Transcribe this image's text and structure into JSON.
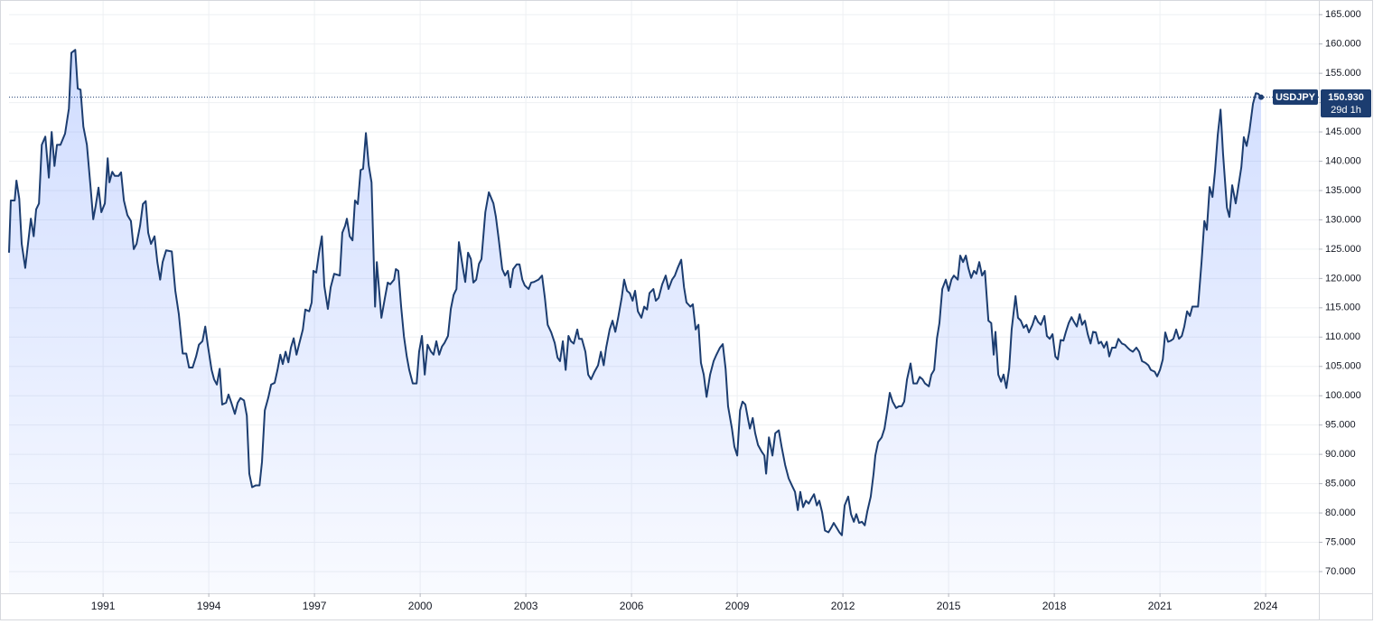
{
  "chart_data": {
    "type": "area",
    "series": [
      {
        "name": "USDJPY",
        "color": "#1c3d70",
        "fill": "#2962ff",
        "x": [
          1988.33,
          1988.38,
          1988.49,
          1988.54,
          1988.62,
          1988.69,
          1988.79,
          1988.95,
          1989.03,
          1989.1,
          1989.18,
          1989.26,
          1989.36,
          1989.46,
          1989.54,
          1989.62,
          1989.69,
          1989.79,
          1989.92,
          1990.03,
          1990.1,
          1990.21,
          1990.28,
          1990.36,
          1990.44,
          1990.54,
          1990.64,
          1990.72,
          1990.79,
          1990.87,
          1990.95,
          1991.05,
          1991.13,
          1991.18,
          1991.26,
          1991.33,
          1991.44,
          1991.51,
          1991.59,
          1991.69,
          1991.79,
          1991.87,
          1991.95,
          1992.05,
          1992.13,
          1992.21,
          1992.28,
          1992.36,
          1992.46,
          1992.54,
          1992.62,
          1992.69,
          1992.79,
          1992.95,
          1993.05,
          1993.15,
          1993.26,
          1993.36,
          1993.44,
          1993.54,
          1993.64,
          1993.72,
          1993.82,
          1993.9,
          1993.97,
          1994.08,
          1994.15,
          1994.23,
          1994.31,
          1994.38,
          1994.49,
          1994.56,
          1994.64,
          1994.74,
          1994.82,
          1994.9,
          1995.0,
          1995.08,
          1995.15,
          1995.23,
          1995.33,
          1995.44,
          1995.51,
          1995.59,
          1995.69,
          1995.77,
          1995.87,
          1995.95,
          1996.03,
          1996.1,
          1996.18,
          1996.26,
          1996.33,
          1996.41,
          1996.49,
          1996.56,
          1996.67,
          1996.74,
          1996.85,
          1996.92,
          1996.97,
          1997.05,
          1997.13,
          1997.21,
          1997.28,
          1997.38,
          1997.46,
          1997.56,
          1997.72,
          1997.79,
          1997.87,
          1997.92,
          1998.0,
          1998.08,
          1998.15,
          1998.23,
          1998.31,
          1998.38,
          1998.46,
          1998.54,
          1998.62,
          1998.72,
          1998.77,
          1998.9,
          1999.0,
          1999.08,
          1999.15,
          1999.26,
          1999.31,
          1999.38,
          1999.46,
          1999.54,
          1999.62,
          1999.69,
          1999.79,
          1999.9,
          1999.97,
          2000.05,
          2000.13,
          2000.21,
          2000.31,
          2000.38,
          2000.46,
          2000.54,
          2000.62,
          2000.69,
          2000.79,
          2000.87,
          2000.95,
          2001.03,
          2001.1,
          2001.21,
          2001.28,
          2001.36,
          2001.44,
          2001.51,
          2001.59,
          2001.67,
          2001.74,
          2001.85,
          2001.95,
          2002.08,
          2002.15,
          2002.23,
          2002.33,
          2002.41,
          2002.49,
          2002.56,
          2002.64,
          2002.74,
          2002.82,
          2002.9,
          2002.97,
          2003.08,
          2003.15,
          2003.23,
          2003.36,
          2003.46,
          2003.54,
          2003.62,
          2003.72,
          2003.82,
          2003.9,
          2003.97,
          2004.05,
          2004.13,
          2004.21,
          2004.28,
          2004.36,
          2004.46,
          2004.51,
          2004.59,
          2004.69,
          2004.77,
          2004.85,
          2004.95,
          2005.05,
          2005.13,
          2005.21,
          2005.28,
          2005.38,
          2005.46,
          2005.54,
          2005.62,
          2005.72,
          2005.79,
          2005.87,
          2005.95,
          2006.03,
          2006.1,
          2006.18,
          2006.28,
          2006.36,
          2006.44,
          2006.51,
          2006.62,
          2006.69,
          2006.77,
          2006.87,
          2006.97,
          2007.05,
          2007.15,
          2007.23,
          2007.31,
          2007.41,
          2007.49,
          2007.56,
          2007.67,
          2007.74,
          2007.82,
          2007.9,
          2007.97,
          2008.05,
          2008.13,
          2008.23,
          2008.33,
          2008.41,
          2008.51,
          2008.59,
          2008.67,
          2008.74,
          2008.85,
          2008.92,
          2009.0,
          2009.08,
          2009.15,
          2009.23,
          2009.31,
          2009.36,
          2009.44,
          2009.51,
          2009.59,
          2009.69,
          2009.77,
          2009.82,
          2009.9,
          2010.0,
          2010.08,
          2010.18,
          2010.26,
          2010.36,
          2010.46,
          2010.56,
          2010.64,
          2010.72,
          2010.79,
          2010.87,
          2010.95,
          2011.03,
          2011.1,
          2011.18,
          2011.26,
          2011.33,
          2011.41,
          2011.49,
          2011.59,
          2011.67,
          2011.74,
          2011.82,
          2011.9,
          2011.97,
          2012.05,
          2012.15,
          2012.23,
          2012.31,
          2012.38,
          2012.46,
          2012.54,
          2012.62,
          2012.69,
          2012.79,
          2012.87,
          2012.92,
          2013.0,
          2013.1,
          2013.18,
          2013.26,
          2013.33,
          2013.41,
          2013.51,
          2013.59,
          2013.67,
          2013.74,
          2013.82,
          2013.92,
          2014.0,
          2014.1,
          2014.18,
          2014.26,
          2014.33,
          2014.44,
          2014.51,
          2014.59,
          2014.67,
          2014.74,
          2014.82,
          2014.92,
          2015.0,
          2015.08,
          2015.15,
          2015.26,
          2015.33,
          2015.41,
          2015.49,
          2015.56,
          2015.64,
          2015.72,
          2015.79,
          2015.87,
          2015.95,
          2016.03,
          2016.13,
          2016.21,
          2016.28,
          2016.33,
          2016.41,
          2016.49,
          2016.56,
          2016.64,
          2016.72,
          2016.79,
          2016.9,
          2016.97,
          2017.05,
          2017.13,
          2017.21,
          2017.28,
          2017.38,
          2017.46,
          2017.54,
          2017.62,
          2017.72,
          2017.79,
          2017.87,
          2017.95,
          2018.03,
          2018.1,
          2018.18,
          2018.26,
          2018.33,
          2018.41,
          2018.49,
          2018.56,
          2018.64,
          2018.72,
          2018.79,
          2018.87,
          2018.95,
          2019.03,
          2019.1,
          2019.18,
          2019.26,
          2019.33,
          2019.41,
          2019.49,
          2019.56,
          2019.64,
          2019.74,
          2019.82,
          2019.92,
          2020.0,
          2020.08,
          2020.15,
          2020.23,
          2020.33,
          2020.41,
          2020.49,
          2020.59,
          2020.67,
          2020.74,
          2020.85,
          2020.92,
          2021.0,
          2021.08,
          2021.15,
          2021.23,
          2021.31,
          2021.38,
          2021.46,
          2021.54,
          2021.62,
          2021.69,
          2021.77,
          2021.85,
          2021.92,
          2022.0,
          2022.08,
          2022.18,
          2022.26,
          2022.33,
          2022.41,
          2022.49,
          2022.56,
          2022.64,
          2022.72,
          2022.79,
          2022.9,
          2022.97,
          2023.05,
          2023.15,
          2023.23,
          2023.31,
          2023.38,
          2023.46,
          2023.54,
          2023.64,
          2023.72,
          2023.79,
          2023.87
        ],
        "values": [
          124.4,
          133.3,
          133.3,
          136.7,
          133.6,
          125.9,
          121.8,
          130.2,
          127.2,
          131.8,
          132.8,
          142.8,
          144.2,
          137.2,
          145.0,
          139.2,
          142.8,
          142.8,
          144.7,
          149.0,
          158.5,
          159.0,
          152.4,
          152.2,
          145.9,
          142.8,
          135.9,
          130.1,
          132.4,
          135.5,
          131.3,
          132.8,
          140.5,
          136.4,
          138.2,
          137.5,
          137.5,
          138.1,
          133.3,
          130.8,
          129.8,
          125.0,
          125.9,
          129.0,
          132.7,
          133.2,
          127.8,
          125.9,
          127.2,
          122.8,
          119.8,
          122.8,
          124.8,
          124.6,
          117.9,
          113.9,
          107.2,
          107.2,
          104.8,
          104.8,
          106.7,
          108.7,
          109.3,
          111.8,
          108.7,
          104.4,
          102.8,
          101.9,
          104.6,
          98.5,
          98.8,
          100.2,
          98.8,
          96.9,
          98.8,
          99.6,
          99.2,
          96.6,
          86.7,
          84.4,
          84.7,
          84.7,
          88.7,
          97.5,
          99.7,
          101.9,
          102.2,
          104.4,
          107.0,
          105.4,
          107.5,
          105.7,
          108.2,
          109.8,
          107.0,
          108.7,
          111.3,
          114.7,
          114.4,
          115.9,
          121.3,
          121.0,
          124.4,
          127.2,
          118.7,
          114.8,
          118.5,
          120.8,
          120.5,
          127.8,
          129.0,
          130.2,
          127.2,
          126.5,
          133.3,
          132.7,
          138.5,
          138.7,
          144.8,
          139.3,
          136.4,
          115.2,
          122.8,
          113.3,
          116.7,
          119.3,
          119.0,
          119.8,
          121.6,
          121.3,
          115.2,
          110.1,
          106.7,
          104.4,
          102.1,
          102.1,
          107.5,
          110.2,
          103.6,
          108.7,
          107.5,
          107.0,
          109.3,
          107.0,
          108.4,
          109.0,
          110.2,
          114.8,
          117.2,
          118.2,
          126.2,
          121.9,
          119.4,
          124.4,
          123.3,
          119.3,
          119.8,
          122.5,
          123.3,
          131.3,
          134.7,
          132.8,
          130.5,
          126.7,
          121.6,
          120.5,
          121.3,
          118.5,
          121.6,
          122.4,
          122.4,
          119.8,
          118.8,
          118.2,
          119.3,
          119.4,
          119.8,
          120.5,
          116.7,
          112.1,
          110.8,
          109.0,
          106.5,
          105.9,
          109.3,
          104.4,
          110.2,
          109.3,
          108.9,
          111.3,
          109.7,
          109.7,
          107.5,
          103.6,
          102.8,
          104.1,
          105.2,
          107.5,
          105.2,
          108.2,
          111.3,
          112.8,
          110.9,
          113.3,
          116.7,
          119.8,
          117.9,
          117.5,
          116.2,
          117.9,
          114.4,
          113.3,
          115.2,
          114.7,
          117.5,
          118.2,
          116.2,
          116.7,
          119.0,
          120.5,
          118.2,
          119.8,
          120.5,
          121.8,
          123.2,
          118.5,
          115.9,
          115.2,
          115.6,
          111.3,
          112.1,
          105.6,
          103.6,
          99.8,
          103.6,
          105.9,
          107.0,
          108.2,
          108.8,
          104.6,
          98.2,
          94.4,
          91.3,
          89.8,
          97.5,
          99.0,
          98.5,
          95.9,
          94.4,
          96.2,
          93.6,
          91.6,
          90.5,
          89.8,
          86.7,
          92.9,
          89.8,
          93.6,
          94.1,
          91.3,
          88.2,
          85.9,
          84.6,
          83.6,
          80.5,
          83.6,
          81.0,
          82.1,
          81.6,
          82.4,
          83.2,
          81.3,
          82.1,
          80.1,
          77.0,
          76.7,
          77.5,
          78.3,
          77.5,
          76.7,
          76.2,
          81.3,
          82.8,
          79.8,
          78.5,
          79.8,
          78.3,
          78.5,
          77.9,
          80.2,
          82.8,
          86.7,
          89.8,
          92.1,
          92.9,
          94.4,
          97.5,
          100.5,
          99.0,
          97.9,
          98.2,
          98.2,
          99.0,
          102.8,
          105.5,
          102.1,
          102.1,
          103.2,
          102.8,
          102.1,
          101.6,
          103.6,
          104.4,
          109.8,
          112.4,
          118.2,
          119.8,
          117.9,
          119.8,
          120.5,
          119.8,
          123.9,
          122.8,
          123.9,
          121.8,
          120.1,
          121.3,
          120.8,
          122.8,
          120.5,
          121.3,
          112.8,
          112.4,
          107.0,
          110.9,
          103.6,
          102.4,
          103.6,
          101.3,
          104.7,
          111.3,
          117.0,
          113.3,
          112.8,
          111.6,
          112.1,
          110.8,
          112.1,
          113.6,
          112.6,
          112.1,
          113.6,
          110.2,
          109.7,
          110.5,
          106.7,
          106.2,
          109.5,
          109.4,
          110.9,
          112.4,
          113.4,
          112.6,
          111.8,
          113.9,
          112.1,
          112.8,
          110.5,
          108.9,
          110.9,
          110.8,
          108.9,
          109.2,
          108.2,
          109.2,
          106.7,
          108.2,
          108.2,
          109.7,
          108.9,
          108.7,
          108.2,
          107.8,
          107.5,
          108.2,
          107.5,
          105.9,
          105.6,
          105.2,
          104.4,
          104.1,
          103.3,
          104.4,
          106.2,
          110.8,
          109.2,
          109.4,
          109.7,
          111.3,
          109.7,
          110.2,
          111.8,
          114.4,
          113.6,
          115.2,
          115.2,
          115.2,
          122.8,
          129.8,
          128.3,
          135.6,
          133.9,
          138.2,
          144.5,
          148.8,
          141.3,
          132.1,
          130.5,
          135.9,
          132.8,
          135.9,
          139.0,
          144.1,
          142.6,
          145.2,
          149.8,
          151.6,
          151.5,
          150.93
        ]
      }
    ],
    "xlim": [
      1988.33,
      2025.51
    ],
    "ylim": [
      66.3,
      167.5
    ],
    "xticks": [
      1991,
      1994,
      1997,
      2000,
      2003,
      2006,
      2009,
      2012,
      2015,
      2018,
      2021,
      2024
    ],
    "yticks": [
      {
        "value": 70,
        "label": "70.000"
      },
      {
        "value": 75,
        "label": "75.000"
      },
      {
        "value": 80,
        "label": "80.000"
      },
      {
        "value": 85,
        "label": "85.000"
      },
      {
        "value": 90,
        "label": "90.000"
      },
      {
        "value": 95,
        "label": "95.000"
      },
      {
        "value": 100,
        "label": "100.000"
      },
      {
        "value": 105,
        "label": "105.000"
      },
      {
        "value": 110,
        "label": "110.000"
      },
      {
        "value": 115,
        "label": "115.000"
      },
      {
        "value": 120,
        "label": "120.000"
      },
      {
        "value": 125,
        "label": "125.000"
      },
      {
        "value": 130,
        "label": "130.000"
      },
      {
        "value": 135,
        "label": "135.000"
      },
      {
        "value": 140,
        "label": "140.000"
      },
      {
        "value": 145,
        "label": "145.000"
      },
      {
        "value": 150,
        "label": "150.000"
      },
      {
        "value": 155,
        "label": "155.000"
      },
      {
        "value": 160,
        "label": "160.000"
      },
      {
        "value": 165,
        "label": "165.000"
      }
    ],
    "grid": true,
    "current_price": {
      "value": 150.93,
      "label": "150.930"
    },
    "countdown": "29d 1h"
  }
}
